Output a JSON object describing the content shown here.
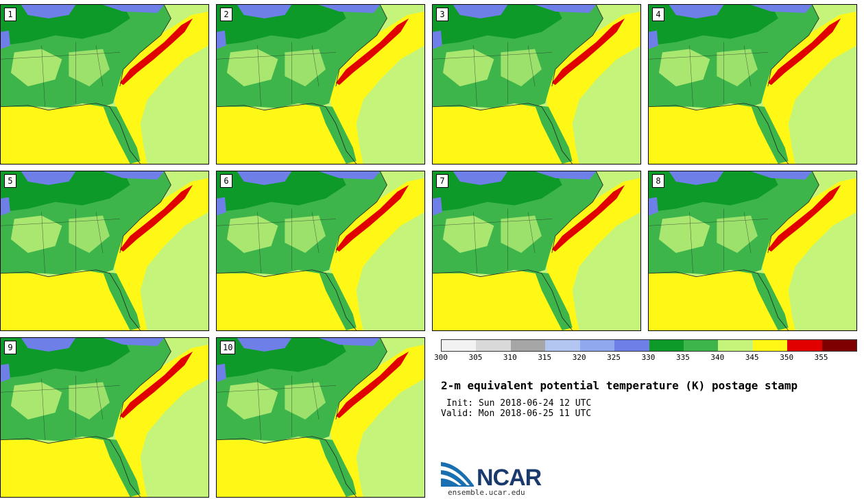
{
  "panels": [
    {
      "label": "1"
    },
    {
      "label": "2"
    },
    {
      "label": "3"
    },
    {
      "label": "4"
    },
    {
      "label": "5"
    },
    {
      "label": "6"
    },
    {
      "label": "7"
    },
    {
      "label": "8"
    },
    {
      "label": "9"
    },
    {
      "label": "10"
    }
  ],
  "colorbar": {
    "colors": [
      "#f2f2f2",
      "#d9d9d9",
      "#a6a6a6",
      "#b3c6f2",
      "#8fa8ee",
      "#6f7fe8",
      "#0d9a28",
      "#3db54a",
      "#c4f47a",
      "#fff816",
      "#e00000",
      "#7e0000"
    ],
    "tick_labels": [
      "300",
      "305",
      "310",
      "315",
      "320",
      "325",
      "330",
      "335",
      "340",
      "345",
      "350",
      "355"
    ]
  },
  "title": "2-m equivalent potential temperature (K) postage stamp",
  "init": "Init: Sun 2018-06-24 12 UTC",
  "valid": "Valid: Mon 2018-06-25 11 UTC",
  "logo": {
    "name": "NCAR",
    "url": "ensemble.ucar.edu"
  }
}
